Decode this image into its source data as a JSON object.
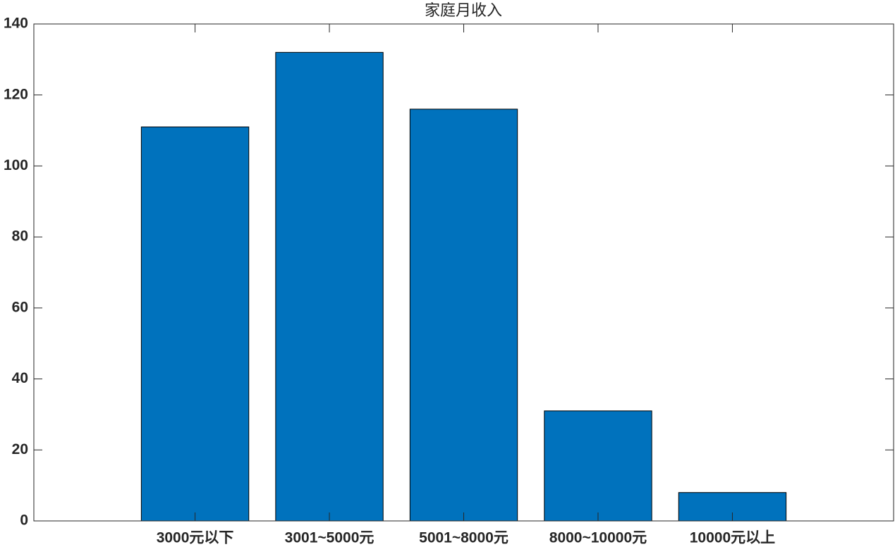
{
  "chart_data": {
    "type": "bar",
    "title": "家庭月收入",
    "categories": [
      "3000元以下",
      "3001~5000元",
      "5001~8000元",
      "8000~10000元",
      "10000元以上"
    ],
    "values": [
      111,
      132,
      116,
      31,
      8
    ],
    "color": "#0072bd",
    "ylim": [
      0,
      140
    ],
    "yticks": [
      0,
      20,
      40,
      60,
      80,
      100,
      120,
      140
    ],
    "grid": false
  }
}
